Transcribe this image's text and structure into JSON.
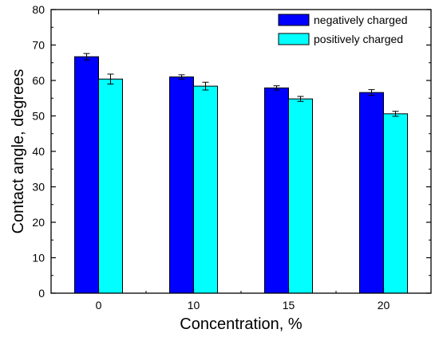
{
  "chart_data": {
    "type": "bar",
    "xlabel": "Concentration, %",
    "ylabel": "Contact angle, degrees",
    "ylim": [
      0,
      80
    ],
    "yticks": [
      0,
      10,
      20,
      30,
      40,
      50,
      60,
      70,
      80
    ],
    "categories": [
      "0",
      "10",
      "15",
      "20"
    ],
    "series": [
      {
        "name": "negatively charged",
        "color": "#0000ff",
        "values": [
          66.7,
          61.0,
          57.9,
          56.6
        ],
        "errors": [
          0.9,
          0.6,
          0.6,
          0.8
        ]
      },
      {
        "name": "positively charged",
        "color": "#00ffff",
        "values": [
          60.4,
          58.4,
          54.8,
          50.6
        ],
        "errors": [
          1.4,
          1.1,
          0.7,
          0.7
        ]
      }
    ],
    "legend_position": "top-right",
    "grid": false
  }
}
